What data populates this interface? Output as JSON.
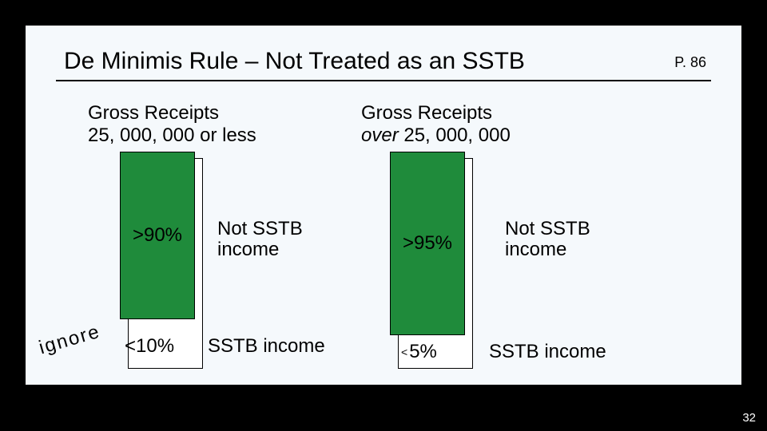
{
  "slide": {
    "title": "De Minimis Rule – Not Treated as an SSTB",
    "page_ref": "P. 86",
    "slide_number": "32",
    "background_outer": "#000000",
    "background_inner": "#f5f9fc"
  },
  "headings": {
    "left_line1": "Gross Receipts",
    "left_line2": "25, 000, 000 or less",
    "right_line1": "Gross Receipts",
    "right_over": "over",
    "right_line2_rest": " 25, 000, 000"
  },
  "bars": {
    "color_fill": "#1f8b3b",
    "color_back": "#ffffff",
    "border_color": "#000000",
    "left": {
      "top_label": ">90%",
      "bottom_label": "<10%",
      "top_caption_line1": "Not SSTB",
      "top_caption_line2": "income",
      "bottom_caption": "SSTB income"
    },
    "right": {
      "top_label": ">95%",
      "bottom_lt": "<",
      "bottom_val": "5%",
      "top_caption_line1": "Not SSTB",
      "top_caption_line2": "income",
      "bottom_caption": "SSTB income"
    }
  },
  "annotation": {
    "ignore": "ignore"
  }
}
